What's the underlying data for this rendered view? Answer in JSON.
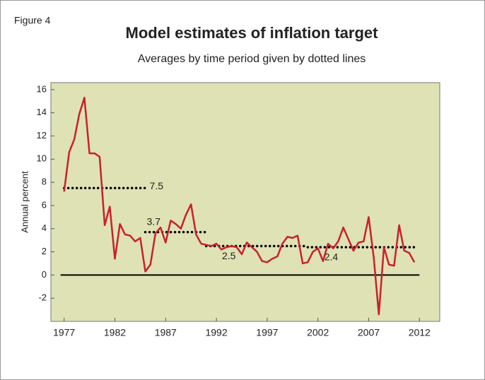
{
  "chart_data": {
    "type": "line",
    "figure_label": "Figure 4",
    "title": "Model estimates of inflation target",
    "subtitle": "Averages by time period given by dotted lines",
    "ylabel": "Annual percent",
    "xlim": [
      1975.7,
      2014
    ],
    "ylim": [
      -4,
      16.6
    ],
    "xticks": [
      1977,
      1982,
      1987,
      1992,
      1997,
      2002,
      2007,
      2012
    ],
    "yticks": [
      -2,
      0,
      2,
      4,
      6,
      8,
      10,
      12,
      14,
      16
    ],
    "x": [
      1977,
      1977.5,
      1978,
      1978.5,
      1979,
      1979.5,
      1980,
      1980.5,
      1981,
      1981.5,
      1982,
      1982.5,
      1983,
      1983.5,
      1984,
      1984.5,
      1985,
      1985.5,
      1986,
      1986.5,
      1987,
      1987.5,
      1988,
      1988.5,
      1989,
      1989.5,
      1990,
      1990.5,
      1991,
      1991.5,
      1992,
      1992.5,
      1993,
      1993.5,
      1994,
      1994.5,
      1995,
      1995.5,
      1996,
      1996.5,
      1997,
      1997.5,
      1998,
      1998.5,
      1999,
      1999.5,
      2000,
      2000.5,
      2001,
      2001.5,
      2002,
      2002.5,
      2003,
      2003.5,
      2004,
      2004.5,
      2005,
      2005.5,
      2006,
      2006.5,
      2007,
      2007.5,
      2008,
      2008.5,
      2009,
      2009.5,
      2010,
      2010.5,
      2011,
      2011.5
    ],
    "series": [
      {
        "color": "#c8202f",
        "values": [
          7.2,
          10.6,
          11.7,
          13.9,
          15.3,
          10.5,
          10.5,
          10.2,
          4.3,
          5.9,
          1.4,
          4.4,
          3.5,
          3.4,
          2.9,
          3.2,
          0.3,
          0.9,
          3.6,
          4.1,
          2.8,
          4.7,
          4.4,
          4.0,
          5.2,
          6.1,
          3.5,
          2.7,
          2.6,
          2.5,
          2.7,
          2.2,
          2.4,
          2.5,
          2.4,
          1.8,
          2.8,
          2.4,
          2.0,
          1.2,
          1.1,
          1.4,
          1.6,
          2.7,
          3.3,
          3.2,
          3.4,
          1.0,
          1.1,
          2.0,
          2.3,
          1.2,
          2.7,
          2.3,
          2.9,
          4.1,
          3.1,
          2.1,
          2.8,
          2.9,
          5.0,
          1.5,
          -3.4,
          2.4,
          0.9,
          0.8,
          4.3,
          2.1,
          1.9,
          1.1
        ]
      }
    ],
    "averages": [
      {
        "value": 7.5,
        "label": "7.5",
        "start": 1977,
        "end": 1985
      },
      {
        "value": 3.7,
        "label": "3.7",
        "start": 1985,
        "end": 1991
      },
      {
        "value": 2.5,
        "label": "2.5",
        "start": 1991,
        "end": 2001
      },
      {
        "value": 2.4,
        "label": "2.4",
        "start": 2001,
        "end": 2011.5
      }
    ],
    "plot_background": "#dfe2b4"
  }
}
